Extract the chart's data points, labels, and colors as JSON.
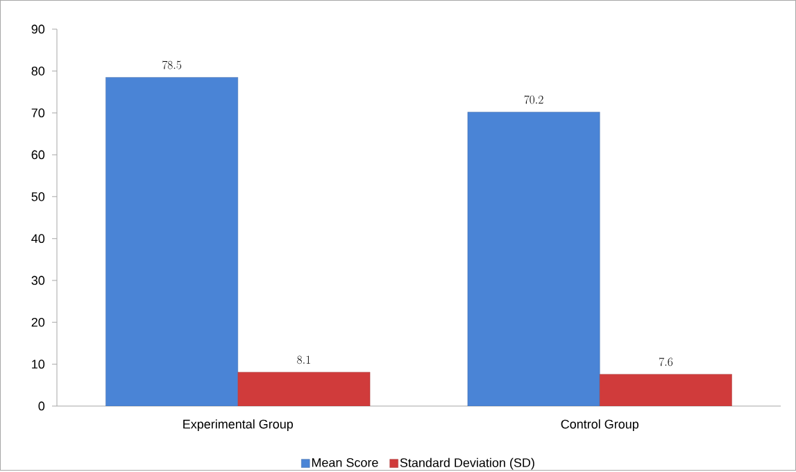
{
  "chart_data": {
    "type": "bar",
    "categories": [
      "Experimental Group",
      "Control Group"
    ],
    "series": [
      {
        "name": "Mean Score",
        "color": "#4a84d6",
        "values": [
          78.5,
          70.2
        ]
      },
      {
        "name": "Standard Deviation (SD)",
        "color": "#d03b3b",
        "values": [
          8.1,
          7.6
        ]
      }
    ],
    "ylim": [
      0,
      90
    ],
    "yticks": [
      0,
      10,
      20,
      30,
      40,
      50,
      60,
      70,
      80,
      90
    ],
    "grid": false,
    "legend": "bottom",
    "data_labels": true
  }
}
